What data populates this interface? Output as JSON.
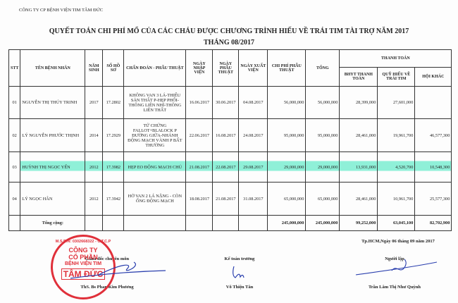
{
  "company": "CÔNG TY CP BỆNH VIỆN TIM TÂM ĐỨC",
  "title": "QUYẾT TOÁN CHI PHÍ MỔ CỦA CÁC CHÁU ĐƯỢC CHƯƠNG TRÌNH HIẾU VỀ TRÁI TIM TÀI TRỢ NĂM 2017",
  "subtitle": "THÁNG 08/2017",
  "headers": {
    "stt": "STT",
    "name": "TÊN BỆNH NHÂN",
    "year": "NĂM SINH",
    "file": "SỐ HỒ SƠ",
    "diag": "CHẨN ĐOÁN - PHẪU THUẬT",
    "admit": "NGÀY NHẬP VIỆN",
    "surgery": "NGÀY PHẪU THUẬT",
    "discharge": "NGÀY XUẤT VIỆN",
    "cost": "CHI PHÍ PHẪU THUẬT",
    "total": "TỔNG",
    "payment": "THANH TOÁN",
    "bhyt": "BHYT THANH TOÁN",
    "fund": "QUỸ HIẾU VỀ TRÁI TIM",
    "other": "HỘI KHÁC"
  },
  "rows": [
    {
      "stt": "01",
      "name": "NGUYỄN THỊ THÚY TRINH",
      "year": "2017",
      "file": "17.2802",
      "diag": "KHÔNG VAN 3 LÁ-THIỂU SẢN THẤT P-HẸP PHỔI-THÔNG LIÊN NHĨ-THÔNG LIÊN THẤT",
      "admit": "16.06.2017",
      "surgery": "30.06.2017",
      "discharge": "04.08.2017",
      "cost": "56,000,000",
      "total": "56,000,000",
      "bhyt": "28,399,000",
      "fund": "27,601,000",
      "other": ""
    },
    {
      "stt": "02",
      "name": "LÝ NGUYỄN PHƯỚC THỊNH",
      "year": "2014",
      "file": "17.2929",
      "diag": "TỨ CHỨNG FALLOT+BLALOCK P ĐƯỜNG GIỮA-NHÁNH ĐỘNG MẠCH VÀNH P BẤT THƯỜNG",
      "admit": "22.06.2017",
      "surgery": "16.08.2017",
      "discharge": "24.08.2017",
      "cost": "95,000,000",
      "total": "95,000,000",
      "bhyt": "28,461,000",
      "fund": "19,961,700",
      "other": "46,577,300"
    },
    {
      "stt": "03",
      "name": "HUỲNH THỊ NGỌC YẾN",
      "year": "2012",
      "file": "17.3982",
      "diag": "HẸP EO ĐỘNG MẠCH CHỦ",
      "admit": "21.08.2017",
      "surgery": "22.08.2017",
      "discharge": "29.08.2017",
      "cost": "29,000,000",
      "total": "29,000,000",
      "bhyt": "13,931,000",
      "fund": "4,520,700",
      "other": "10,548,300"
    },
    {
      "stt": "04",
      "name": "LÝ NGỌC HÂN",
      "year": "2012",
      "file": "17.3942",
      "diag": "HỞ VAN 2 LÁ NẶNG - CÒN ỐNG ĐỘNG MẠCH",
      "admit": "18.08.2017",
      "surgery": "21.08.2017",
      "discharge": "31.08.2017",
      "cost": "65,000,000",
      "total": "65,000,000",
      "bhyt": "28,461,000",
      "fund": "10,961,700",
      "other": "25,577,300"
    }
  ],
  "totals": {
    "label": "Tổng cộng:",
    "cost": "245,000,000",
    "total": "245,000,000",
    "bhyt": "99,252,000",
    "fund": "63,045,100",
    "other": "82,702,900"
  },
  "highlight_color": "#8ff0d8",
  "footer": {
    "date": "Tp.HCM,Ngày 06 tháng 09 năm 2017",
    "director_title": "Giám đốc chuyên môn",
    "director_name": "ThS. Bs Phan Kim Phương",
    "accountant_title": "Kế toán trưởng",
    "accountant_name": "Võ Thiện Tân",
    "preparer_title": "Người lập",
    "preparer_name": "Trần Lâm Thị Như Quỳnh"
  },
  "stamp": {
    "ring": "M.S.D.N: 0302668322 - C.T.C.P",
    "lines": [
      "CÔNG TY",
      "CỔ PHẦN",
      "BỆNH VIỆN TIM"
    ],
    "big": "TÂM ĐỨC",
    "color": "#e0303a"
  }
}
